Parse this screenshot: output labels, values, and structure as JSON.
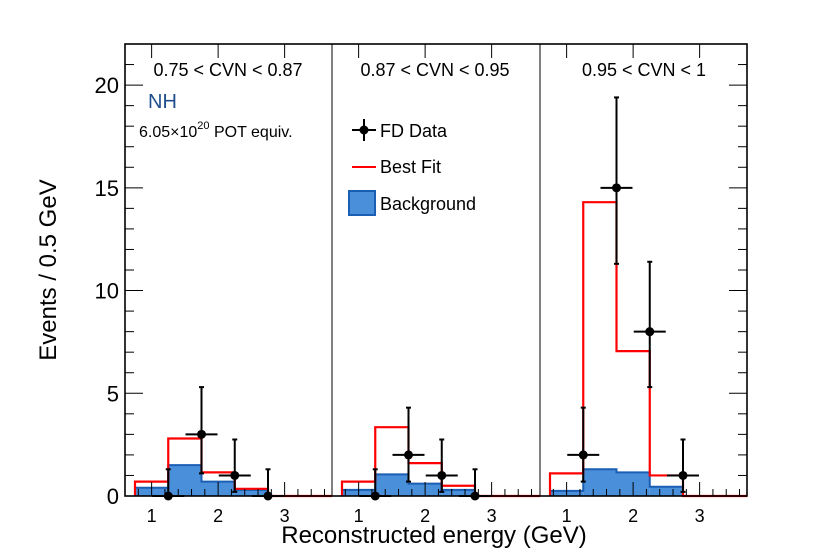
{
  "chart_data": {
    "type": "histogram",
    "ylabel": "Events / 0.5 GeV",
    "xlabel": "Reconstructed energy (GeV)",
    "ylim": [
      0,
      22
    ],
    "y_ticks": [
      0,
      5,
      10,
      15,
      20
    ],
    "grid": false,
    "legend_placement": "center",
    "colors": {
      "data": "#000000",
      "best_fit": "#ff0000",
      "background": "#4a8fd9",
      "background_edge": "#1a5fb4",
      "label_nh": "#1f4e8c"
    },
    "annotations": {
      "mass_hierarchy": "NH",
      "pot_prefix": "6.05×10",
      "pot_exponent": "20",
      "pot_suffix": " POT equiv."
    },
    "legend": [
      {
        "name": "FD Data",
        "style": "marker"
      },
      {
        "name": "Best Fit",
        "style": "line"
      },
      {
        "name": "Background",
        "style": "fill"
      }
    ],
    "panels": [
      {
        "label": "0.75 < CVN < 0.87",
        "bin_edges": [
          0.75,
          1.25,
          1.75,
          2.25,
          2.75,
          4.0
        ],
        "x_ticks": [
          "1",
          "2",
          "3"
        ],
        "background": [
          0.4,
          1.5,
          0.7,
          0.3,
          0.0
        ],
        "best_fit": [
          0.7,
          2.8,
          1.15,
          0.35,
          0.0
        ],
        "data": [
          {
            "x": 1.25,
            "y": 0,
            "err_y": [
              0.0,
              1.3
            ]
          },
          {
            "x": 1.75,
            "y": 3,
            "err_y": [
              1.9,
              2.3
            ]
          },
          {
            "x": 2.25,
            "y": 1,
            "err_y": [
              0.8,
              1.75
            ]
          },
          {
            "x": 2.75,
            "y": 0,
            "err_y": [
              0.0,
              1.3
            ]
          }
        ]
      },
      {
        "label": "0.87 < CVN < 0.95",
        "bin_edges": [
          0.75,
          1.25,
          1.75,
          2.25,
          2.75,
          4.0
        ],
        "x_ticks": [
          "1",
          "2",
          "3"
        ],
        "background": [
          0.3,
          1.05,
          0.6,
          0.3,
          0.0
        ],
        "best_fit": [
          0.7,
          3.35,
          1.6,
          0.5,
          0.0
        ],
        "data": [
          {
            "x": 1.25,
            "y": 0,
            "err_y": [
              0.0,
              1.3
            ]
          },
          {
            "x": 1.75,
            "y": 2,
            "err_y": [
              1.3,
              2.3
            ]
          },
          {
            "x": 2.25,
            "y": 1,
            "err_y": [
              0.8,
              1.75
            ]
          },
          {
            "x": 2.75,
            "y": 0,
            "err_y": [
              0.0,
              1.3
            ]
          }
        ]
      },
      {
        "label": "0.95 < CVN < 1",
        "bin_edges": [
          0.75,
          1.25,
          1.75,
          2.25,
          2.75,
          4.0
        ],
        "x_ticks": [
          "1",
          "2",
          "3"
        ],
        "background": [
          0.25,
          1.3,
          1.15,
          0.45,
          0.0
        ],
        "best_fit": [
          1.1,
          14.3,
          7.05,
          1.0,
          0.0
        ],
        "data": [
          {
            "x": 1.25,
            "y": 2,
            "err_y": [
              1.3,
              2.3
            ]
          },
          {
            "x": 1.75,
            "y": 15,
            "err_y": [
              3.7,
              4.4
            ]
          },
          {
            "x": 2.25,
            "y": 8,
            "err_y": [
              2.7,
              3.4
            ]
          },
          {
            "x": 2.75,
            "y": 1,
            "err_y": [
              0.8,
              1.75
            ]
          }
        ]
      }
    ]
  }
}
